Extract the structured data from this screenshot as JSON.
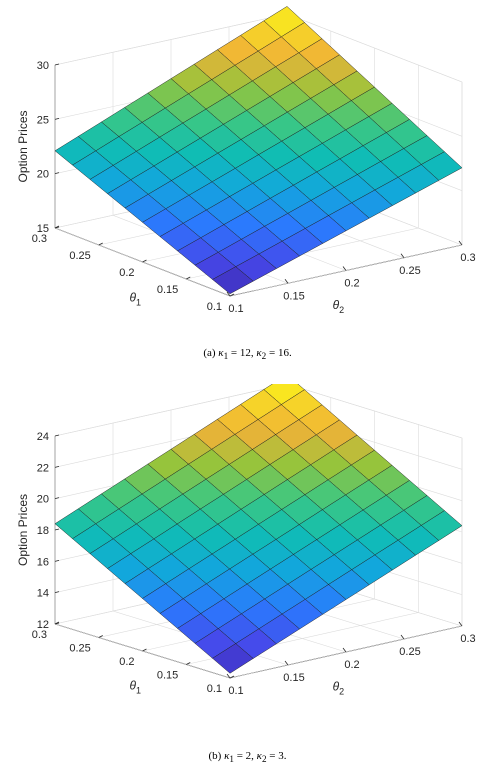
{
  "chart_data": [
    {
      "type": "surface",
      "panel": "a",
      "caption_prefix": "(a)",
      "caption_params": [
        {
          "symbol": "κ",
          "sub": "1",
          "value": "12"
        },
        {
          "symbol": "κ",
          "sub": "2",
          "value": "16"
        }
      ],
      "zlabel": "Option Prices",
      "xlabel": "θ",
      "xlabel_sub": "2",
      "ylabel": "θ",
      "ylabel_sub": "1",
      "x_range": [
        0.1,
        0.3
      ],
      "y_range": [
        0.1,
        0.3
      ],
      "zlim": [
        15,
        30
      ],
      "x_ticks": [
        "0.1",
        "0.15",
        "0.2",
        "0.25",
        "0.3"
      ],
      "y_ticks": [
        "0.1",
        "0.15",
        "0.2",
        "0.25",
        "0.3"
      ],
      "z_ticks": [
        "15",
        "20",
        "25",
        "30"
      ],
      "grid": true,
      "colormap": "parula",
      "grid_points": 11,
      "z_corners": {
        "theta1_min_theta2_min": 15.2,
        "theta1_min_theta2_max": 22.1,
        "theta1_max_theta2_min": 22.1,
        "theta1_max_theta2_max": 30.7
      }
    },
    {
      "type": "surface",
      "panel": "b",
      "caption_prefix": "(b)",
      "caption_params": [
        {
          "symbol": "κ",
          "sub": "1",
          "value": "2"
        },
        {
          "symbol": "κ",
          "sub": "2",
          "value": "3"
        }
      ],
      "zlabel": "Option Prices",
      "xlabel": "θ",
      "xlabel_sub": "2",
      "ylabel": "θ",
      "ylabel_sub": "1",
      "x_range": [
        0.1,
        0.3
      ],
      "y_range": [
        0.1,
        0.3
      ],
      "zlim": [
        12,
        24
      ],
      "x_ticks": [
        "0.1",
        "0.15",
        "0.2",
        "0.25",
        "0.3"
      ],
      "y_ticks": [
        "0.1",
        "0.15",
        "0.2",
        "0.25",
        "0.3"
      ],
      "z_ticks": [
        "12",
        "14",
        "16",
        "18",
        "20",
        "22",
        "24"
      ],
      "grid": true,
      "colormap": "parula",
      "grid_points": 11,
      "z_corners": {
        "theta1_min_theta2_min": 12.3,
        "theta1_min_theta2_max": 18.4,
        "theta1_max_theta2_min": 18.4,
        "theta1_max_theta2_max": 24.6
      }
    }
  ]
}
